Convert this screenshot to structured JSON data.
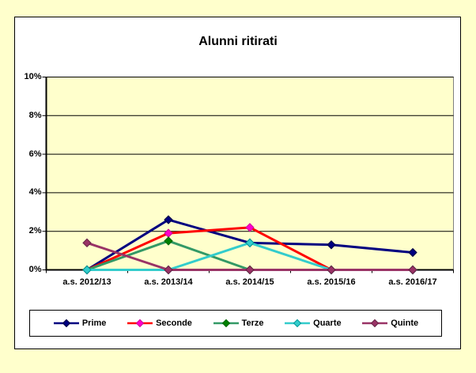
{
  "page": {
    "background_color": "#FFFFCC",
    "chart_area_color": "#FFFFFF"
  },
  "chart_data": {
    "type": "line",
    "title": "Alunni ritirati",
    "categories": [
      "a.s. 2012/13",
      "a.s. 2013/14",
      "a.s. 2014/15",
      "a.s. 2015/16",
      "a.s. 2016/17"
    ],
    "xlabel": "",
    "ylabel": "",
    "ylim": [
      0,
      10
    ],
    "y_tick_step": 2,
    "y_tick_labels_top_to_bottom": [
      "10%",
      "8%",
      "6%",
      "4%",
      "2%",
      "0%"
    ],
    "grid": true,
    "gridline_color": "#000000",
    "plot_bg": "#FFFFCC",
    "plot_border_color": "#808080",
    "axis_color": "#000000",
    "legend_position": "bottom",
    "series": [
      {
        "name": "Prime",
        "values": [
          0,
          2.6,
          1.4,
          1.3,
          0.9
        ],
        "line_color": "#000080",
        "marker_color": "#000080",
        "marker_edge": "#000040"
      },
      {
        "name": "Seconde",
        "values": [
          0,
          1.9,
          2.2,
          0,
          0
        ],
        "line_color": "#FF0000",
        "marker_color": "#FF00CC",
        "marker_edge": "#CC0099"
      },
      {
        "name": "Terze",
        "values": [
          0,
          1.5,
          0,
          0,
          0
        ],
        "line_color": "#339966",
        "marker_color": "#008000",
        "marker_edge": "#006600"
      },
      {
        "name": "Quarte",
        "values": [
          0,
          0,
          1.4,
          0,
          0
        ],
        "line_color": "#33CCCC",
        "marker_color": "#33CCCC",
        "marker_edge": "#009999"
      },
      {
        "name": "Quinte",
        "values": [
          1.4,
          0,
          0,
          0,
          0
        ],
        "line_color": "#993366",
        "marker_color": "#993366",
        "marker_edge": "#662244"
      }
    ]
  }
}
